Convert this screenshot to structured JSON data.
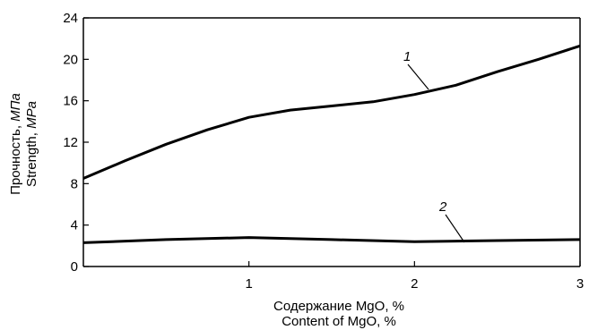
{
  "chart_data": {
    "type": "line",
    "xlabel": [
      "Содержание MgO, %",
      "Content of MgO, %"
    ],
    "ylabel": [
      {
        "text": "Прочность, ",
        "italic_text": "МПа"
      },
      {
        "text": "Strength, ",
        "italic_text": "MPa"
      }
    ],
    "xlim": [
      0,
      3
    ],
    "ylim": [
      0,
      24
    ],
    "xticks": [
      1,
      2,
      3
    ],
    "yticks": [
      0,
      4,
      8,
      12,
      16,
      20,
      24
    ],
    "grid": false,
    "series": [
      {
        "name": "1",
        "x": [
          0,
          0.25,
          0.5,
          0.75,
          1.0,
          1.25,
          1.5,
          1.75,
          2.0,
          2.25,
          2.5,
          2.75,
          3.0
        ],
        "y": [
          8.5,
          10.2,
          11.8,
          13.2,
          14.4,
          15.1,
          15.5,
          15.9,
          16.6,
          17.5,
          18.8,
          20.0,
          21.3
        ]
      },
      {
        "name": "2",
        "x": [
          0,
          0.5,
          1.0,
          1.5,
          2.0,
          2.5,
          3.0
        ],
        "y": [
          2.3,
          2.6,
          2.8,
          2.6,
          2.4,
          2.5,
          2.6
        ]
      }
    ]
  }
}
